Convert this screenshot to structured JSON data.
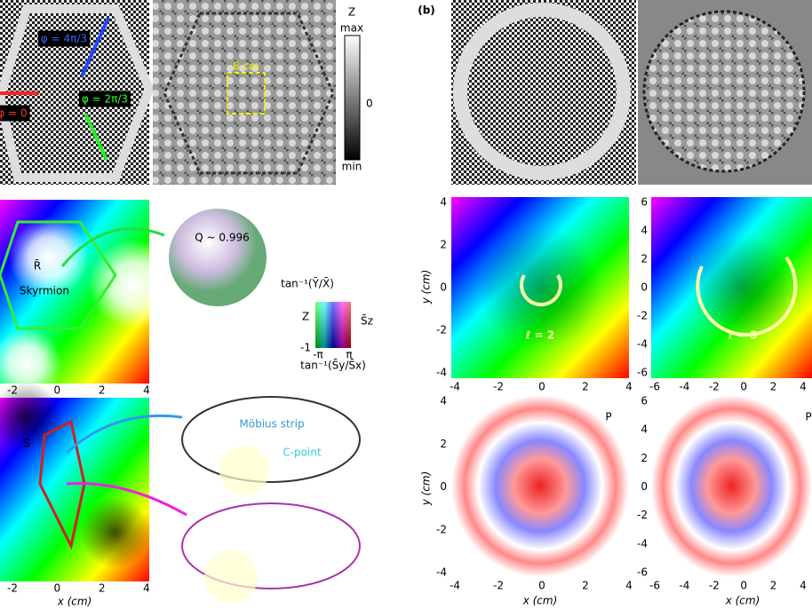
{
  "panel_label_b": "(b)",
  "top_left": {
    "phase_labels": [
      "φ = 4π/3",
      "φ = 2π/3",
      "φ = 0"
    ],
    "scale_label": "8 cm"
  },
  "colorbar": {
    "title": "Z",
    "max": "max",
    "mid": "0",
    "min": "min"
  },
  "skyrmion": {
    "position_label": "R̄",
    "name": "Skyrmion",
    "q_label": "Q ~ 0.996"
  },
  "color_legend": {
    "top": "tan⁻¹(Ȳ/X̄)",
    "left": "Z",
    "right": "S̄z",
    "low": "-1",
    "bottom_left": "-π",
    "bottom_right": "π",
    "bottom": "tan⁻¹(S̄y/S̄x)"
  },
  "mobius": {
    "panel_label": "S",
    "strip_label": "Möbius strip",
    "cpoint_label": "C-point"
  },
  "vortex": {
    "l2": "ℓ = 2",
    "l8": "ℓ = 8",
    "p_left": "P",
    "p_right": "P"
  },
  "axes": {
    "left_mid_xticks": [
      "-2",
      "0",
      "2",
      "4"
    ],
    "left_low_xticks": [
      "-2",
      "0",
      "2",
      "4"
    ],
    "left_low_xlabel": "x (cm)",
    "c1_yticks": [
      "4",
      "2",
      "0",
      "-2",
      "-4"
    ],
    "c1_xticks": [
      "-4",
      "-2",
      "0",
      "2",
      "4"
    ],
    "c1_ylabel": "y (cm)",
    "c2_yticks": [
      "6",
      "4",
      "2",
      "0",
      "-2",
      "-4",
      "-6"
    ],
    "c2_xticks": [
      "-6",
      "-4",
      "-2",
      "0",
      "2",
      "4"
    ],
    "d1_yticks": [
      "4",
      "2",
      "0",
      "-2",
      "-4"
    ],
    "d1_xticks": [
      "-4",
      "-2",
      "0",
      "2",
      "4"
    ],
    "d1_ylabel": "y (cm)",
    "d1_xlabel": "x (cm)",
    "d2_yticks": [
      "6",
      "4",
      "2",
      "0",
      "-2",
      "-4",
      "-6"
    ],
    "d2_xticks": [
      "-6",
      "-4",
      "-2",
      "0",
      "2",
      "4"
    ],
    "d2_xlabel": "x (cm)"
  }
}
